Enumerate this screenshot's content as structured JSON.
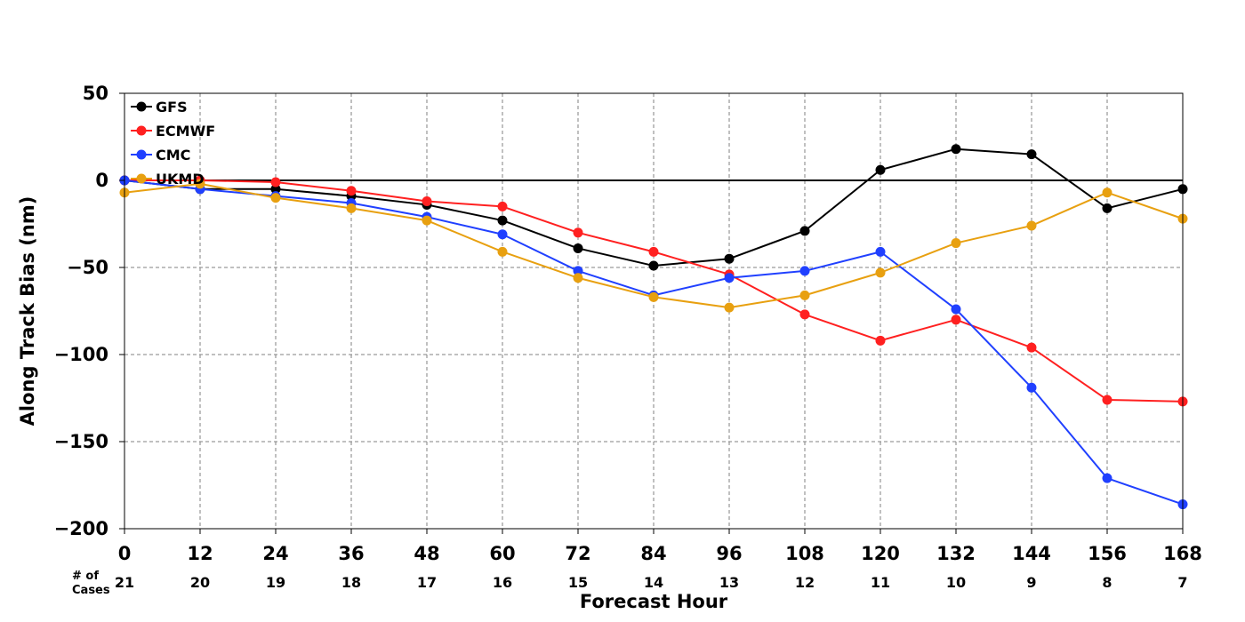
{
  "chart_data": {
    "type": "line",
    "xlabel": "Forecast Hour",
    "ylabel": "Along Track Bias (nm)",
    "x": [
      0,
      12,
      24,
      36,
      48,
      60,
      72,
      84,
      96,
      108,
      120,
      132,
      144,
      156,
      168
    ],
    "xlim": [
      0,
      168
    ],
    "ylim": [
      -200,
      50
    ],
    "x_ticks": [
      0,
      12,
      24,
      36,
      48,
      60,
      72,
      84,
      96,
      108,
      120,
      132,
      144,
      156,
      168
    ],
    "x_tick_labels": [
      "0",
      "12",
      "24",
      "36",
      "48",
      "60",
      "72",
      "84",
      "96",
      "108",
      "120",
      "132",
      "144",
      "156",
      "168"
    ],
    "y_ticks": [
      50,
      0,
      -50,
      -100,
      -150,
      -200
    ],
    "y_tick_labels": [
      "50",
      "0",
      "−50",
      "−100",
      "−150",
      "−200"
    ],
    "grid": true,
    "legend_position": "top-left",
    "cases_title": [
      "# of",
      "Cases"
    ],
    "cases": [
      "21",
      "20",
      "19",
      "18",
      "17",
      "16",
      "15",
      "14",
      "13",
      "12",
      "11",
      "10",
      "9",
      "8",
      "7"
    ],
    "series": [
      {
        "name": "GFS",
        "color": "#000000",
        "values": [
          0,
          -5,
          -5,
          -9,
          -14,
          -23,
          -39,
          -49,
          -45,
          -29,
          6,
          18,
          15,
          -16,
          -5
        ]
      },
      {
        "name": "ECMWF",
        "color": "#ff2020",
        "values": [
          0,
          0,
          -1,
          -6,
          -12,
          -15,
          -30,
          -41,
          -54,
          -77,
          -92,
          -80,
          -96,
          -126,
          -127
        ]
      },
      {
        "name": "CMC",
        "color": "#2040ff",
        "values": [
          0,
          -5,
          -9,
          -13,
          -21,
          -31,
          -52,
          -66,
          -56,
          -52,
          -41,
          -74,
          -119,
          -171,
          -186
        ]
      },
      {
        "name": "UKMD",
        "color": "#e8a010",
        "values": [
          -7,
          -2,
          -10,
          -16,
          -23,
          -41,
          -56,
          -67,
          -73,
          -66,
          -53,
          -36,
          -26,
          -7,
          -22
        ]
      }
    ]
  }
}
